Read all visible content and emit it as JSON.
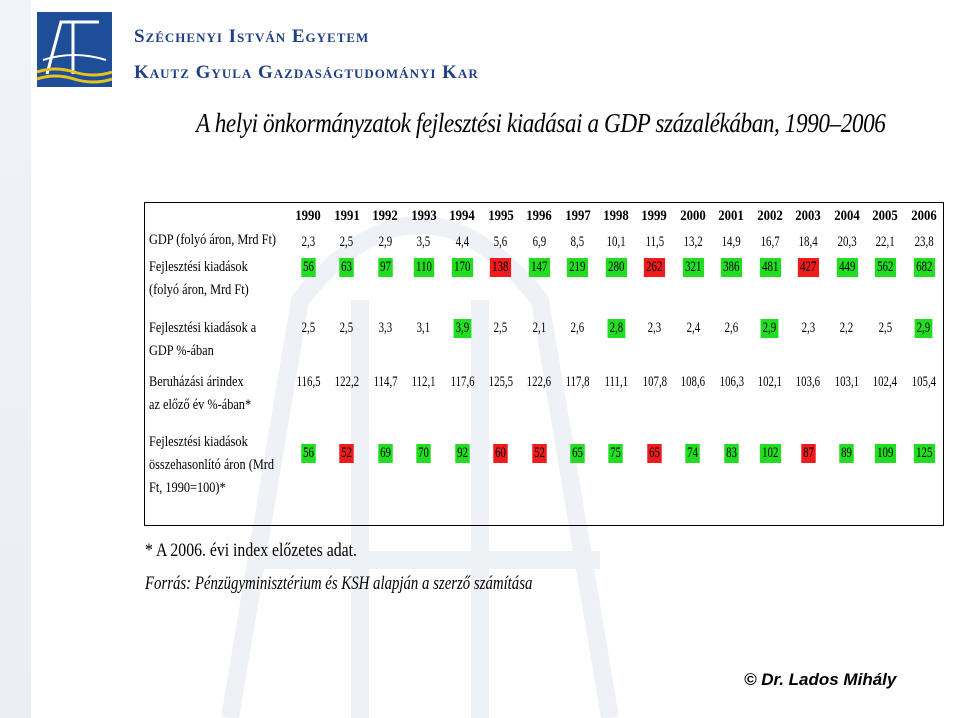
{
  "header": {
    "university_line1": "Széchenyi István Egyetem",
    "university_line2": "Kautz Gyula Gazdaságtudományi Kar"
  },
  "title": "A helyi önkormányzatok fejlesztési kiadásai a GDP százalékában, 1990–2006",
  "table": {
    "years": [
      "1990",
      "1991",
      "1992",
      "1993",
      "1994",
      "1995",
      "1996",
      "1997",
      "1998",
      "1999",
      "2000",
      "2001",
      "2002",
      "2003",
      "2004",
      "2005",
      "2006"
    ],
    "rows": [
      {
        "label_lines": [
          "GDP (folyó áron, Mrd Ft)"
        ],
        "values": [
          "2,3",
          "2,5",
          "2,9",
          "3,5",
          "4,4",
          "5,6",
          "6,9",
          "8,5",
          "10,1",
          "11,5",
          "13,2",
          "14,9",
          "16,7",
          "18,4",
          "20,3",
          "22,1",
          "23,8"
        ],
        "highlights": [
          "",
          "",
          "",
          "",
          "",
          "",
          "",
          "",
          "",
          "",
          "",
          "",
          "",
          "",
          "",
          "",
          ""
        ]
      },
      {
        "label_lines": [
          "Fejlesztési kiadások",
          "(folyó áron, Mrd Ft)"
        ],
        "values": [
          "56",
          "63",
          "97",
          "110",
          "170",
          "138",
          "147",
          "219",
          "280",
          "262",
          "321",
          "386",
          "481",
          "427",
          "449",
          "562",
          "682"
        ],
        "highlights": [
          "green",
          "green",
          "green",
          "green",
          "green",
          "red",
          "green",
          "green",
          "green",
          "red",
          "green",
          "green",
          "green",
          "red",
          "green",
          "green",
          "green"
        ]
      },
      {
        "label_lines": [
          "Fejlesztési kiadások a",
          "GDP %-ában"
        ],
        "values": [
          "2,5",
          "2,5",
          "3,3",
          "3,1",
          "3,9",
          "2,5",
          "2,1",
          "2,6",
          "2,8",
          "2,3",
          "2,4",
          "2,6",
          "2,9",
          "2,3",
          "2,2",
          "2,5",
          "2,9"
        ],
        "highlights": [
          "",
          "",
          "",
          "",
          "green",
          "",
          "",
          "",
          "green",
          "",
          "",
          "",
          "green",
          "",
          "",
          "",
          "green"
        ]
      },
      {
        "label_lines": [
          "Beruházási árindex",
          "az előző év %-ában*"
        ],
        "values": [
          "116,5",
          "122,2",
          "114,7",
          "112,1",
          "117,6",
          "125,5",
          "122,6",
          "117,8",
          "111,1",
          "107,8",
          "108,6",
          "106,3",
          "102,1",
          "103,6",
          "103,1",
          "102,4",
          "105,4"
        ],
        "highlights": [
          "",
          "",
          "",
          "",
          "",
          "",
          "",
          "",
          "",
          "",
          "",
          "",
          "",
          "",
          "",
          "",
          ""
        ]
      },
      {
        "label_lines": [
          "Fejlesztési kiadások",
          "összehasonlító áron (Mrd",
          "Ft, 1990=100)*"
        ],
        "values": [
          "56",
          "52",
          "69",
          "70",
          "92",
          "60",
          "52",
          "65",
          "75",
          "65",
          "74",
          "83",
          "102",
          "87",
          "89",
          "109",
          "125"
        ],
        "highlights": [
          "green",
          "red",
          "green",
          "green",
          "green",
          "red",
          "red",
          "green",
          "green",
          "red",
          "green",
          "green",
          "green",
          "red",
          "green",
          "green",
          "green"
        ]
      }
    ]
  },
  "footnote": "* A 2006. évi index előzetes adat.",
  "source": "Forrás: Pénzügyminisztérium és KSH alapján a szerző számítása",
  "author": "© Dr. Lados Mihály",
  "colors": {
    "highlight_green": "#22dd22",
    "highlight_red": "#ee1c1c",
    "header_blue": "#1f3f86"
  }
}
